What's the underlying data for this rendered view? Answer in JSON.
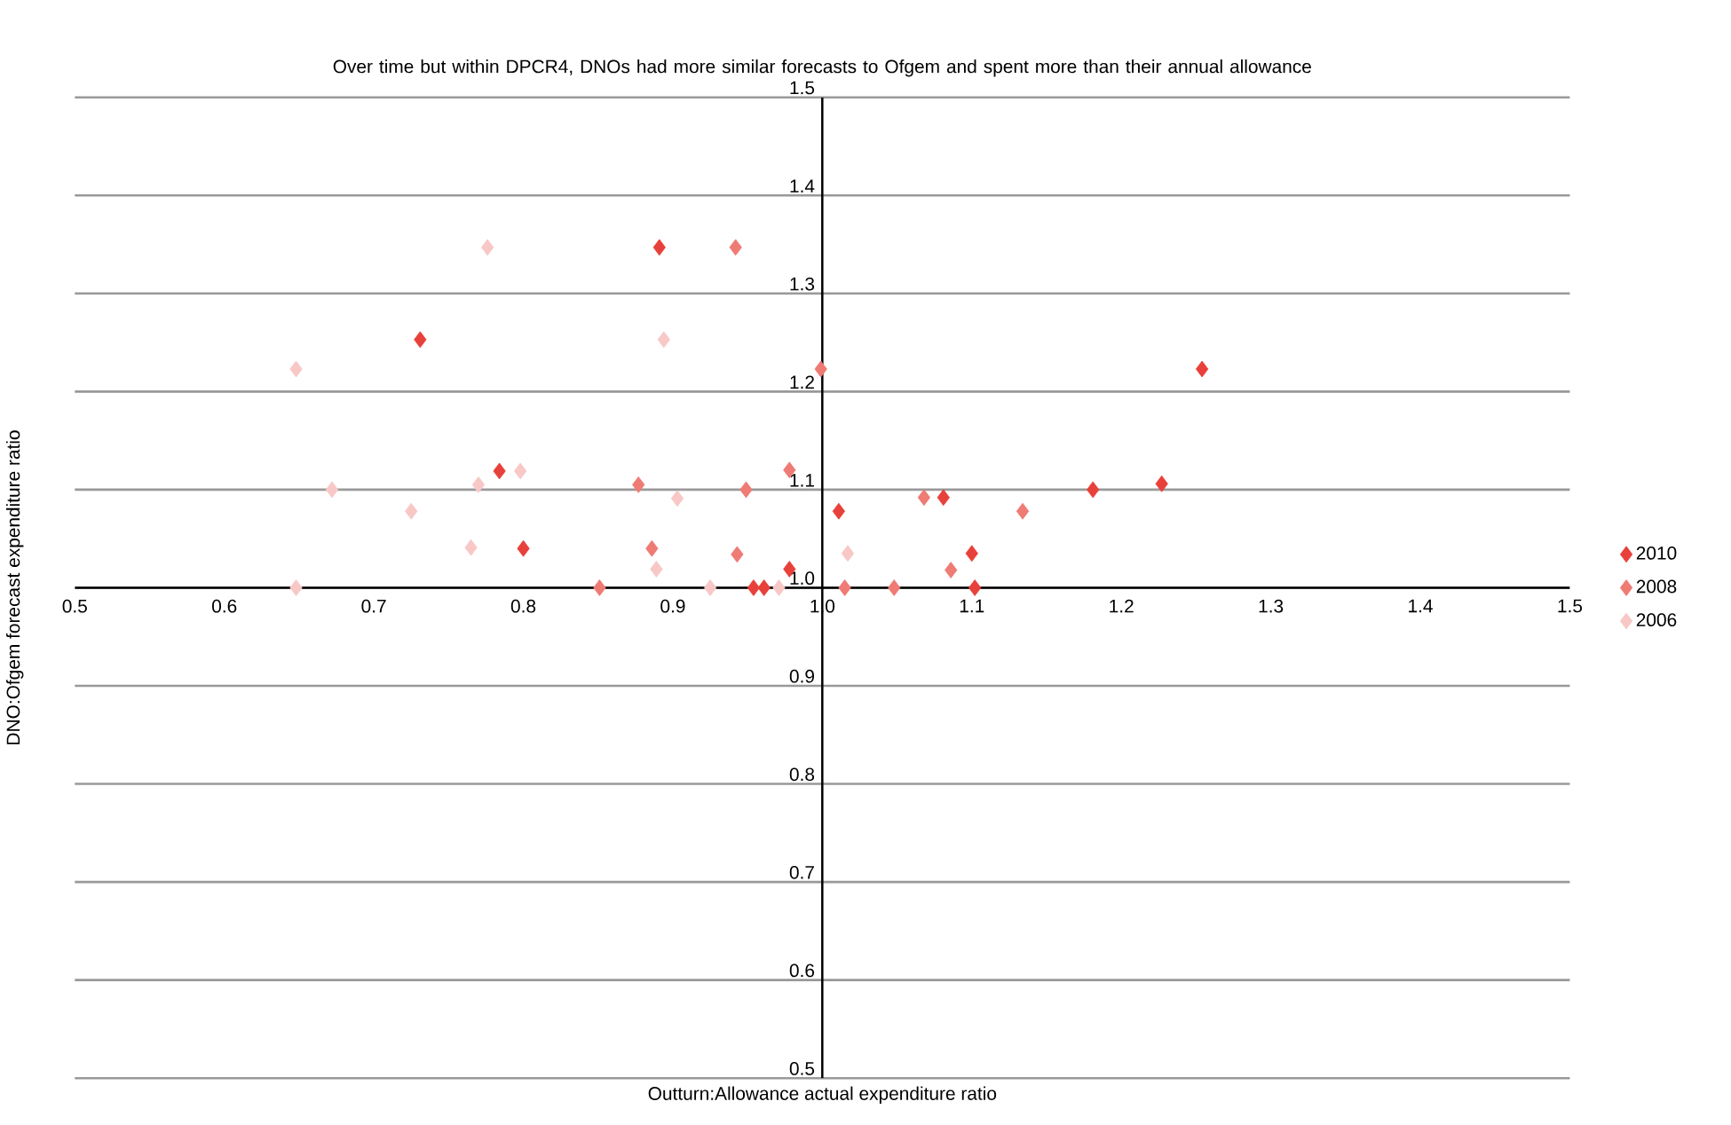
{
  "chart_data": {
    "type": "scatter",
    "title": "Over time but within DPCR4, DNOs had more similar forecasts to Ofgem and spent more than their annual allowance",
    "xlabel": "Outturn:Allowance actual expenditure ratio",
    "ylabel": "DNO:Ofgem forecast expenditure ratio",
    "xlim": [
      0.5,
      1.5
    ],
    "ylim": [
      0.5,
      1.5
    ],
    "xticks": [
      0.5,
      0.6,
      0.7,
      0.8,
      0.9,
      {
        "value": 1,
        "label": "1.0"
      },
      1.1,
      1.2,
      1.3,
      1.4,
      1.5
    ],
    "yticks": [
      0.5,
      0.6,
      0.7,
      0.8,
      0.9,
      {
        "value": 1,
        "label": "1.0"
      },
      1.1,
      1.2,
      1.3,
      1.4,
      1.5
    ],
    "grid": "y",
    "legend": "right",
    "marker": "diamond",
    "series": [
      {
        "name": "2010",
        "color": "#e8403a",
        "x": [
          0.731,
          0.784,
          0.8,
          0.891,
          0.978,
          0.954,
          0.961,
          1.011,
          1.081,
          1.1,
          1.102,
          1.181,
          1.227,
          1.254
        ],
        "values": [
          1.253,
          1.119,
          1.04,
          1.347,
          1.019,
          1.0,
          1.0,
          1.078,
          1.092,
          1.035,
          1.0,
          1.1,
          1.106,
          1.223
        ]
      },
      {
        "name": "2008",
        "color": "#ee7b74",
        "x": [
          0.942,
          0.999,
          0.877,
          0.978,
          0.949,
          0.886,
          0.943,
          0.851,
          1.015,
          1.068,
          1.048,
          1.086,
          1.134
        ],
        "values": [
          1.347,
          1.223,
          1.105,
          1.12,
          1.1,
          1.04,
          1.034,
          1.0,
          1.0,
          1.092,
          1.0,
          1.018,
          1.078
        ]
      },
      {
        "name": "2006",
        "color": "#f8c8c6",
        "x": [
          0.648,
          0.776,
          0.894,
          0.672,
          0.725,
          0.77,
          0.798,
          0.765,
          0.903,
          0.889,
          0.648,
          0.925,
          1.017,
          0.971
        ],
        "values": [
          1.223,
          1.347,
          1.253,
          1.1,
          1.078,
          1.105,
          1.119,
          1.041,
          1.091,
          1.019,
          1.0,
          1.0,
          1.035,
          1.0
        ]
      }
    ]
  }
}
